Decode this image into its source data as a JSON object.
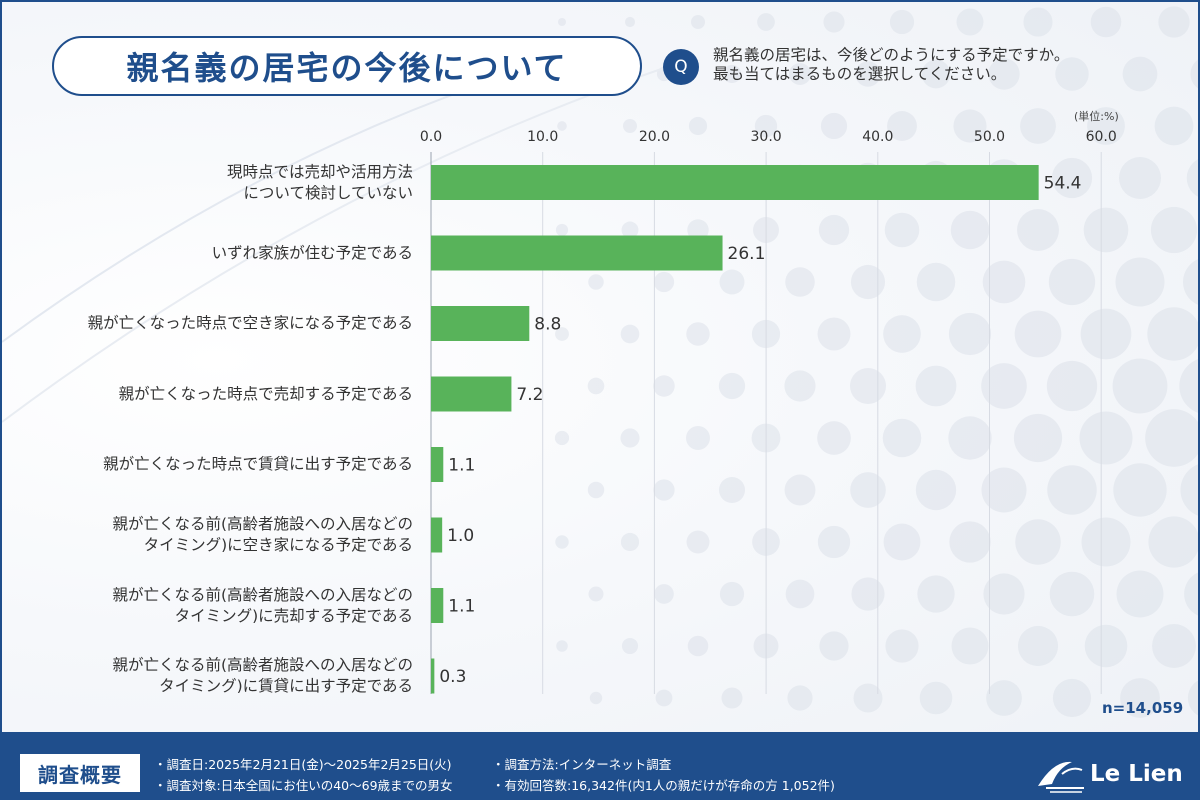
{
  "title": "親名義の居宅の今後について",
  "question": {
    "badge": "Q",
    "line1": "親名義の居宅は、今後どのようにする予定ですか。",
    "line2": "最も当てはまるものを選択してください。"
  },
  "unit_label": "(単位:%)",
  "sample_size": "n=14,059",
  "colors": {
    "bar": "#58b35a",
    "accent": "#1f4e8c",
    "grid": "#d7dbe3"
  },
  "chart_data": {
    "type": "bar",
    "orientation": "horizontal",
    "xlim": [
      0,
      60
    ],
    "ticks": [
      "0.0",
      "10.0",
      "20.0",
      "30.0",
      "40.0",
      "50.0",
      "60.0"
    ],
    "grid": true,
    "categories": [
      [
        "現時点では売却や活用方法",
        "について検討していない"
      ],
      [
        "いずれ家族が住む予定である"
      ],
      [
        "親が亡くなった時点で空き家になる予定である"
      ],
      [
        "親が亡くなった時点で売却する予定である"
      ],
      [
        "親が亡くなった時点で賃貸に出す予定である"
      ],
      [
        "親が亡くなる前(高齢者施設への入居などの",
        "タイミング)に空き家になる予定である"
      ],
      [
        "親が亡くなる前(高齢者施設への入居などの",
        "タイミング)に売却する予定である"
      ],
      [
        "親が亡くなる前(高齢者施設への入居などの",
        "タイミング)に賃貸に出す予定である"
      ]
    ],
    "values": [
      54.4,
      26.1,
      8.8,
      7.2,
      1.1,
      1.0,
      1.1,
      0.3
    ],
    "value_labels": [
      "54.4",
      "26.1",
      "8.8",
      "7.2",
      "1.1",
      "1.0",
      "1.1",
      "0.3"
    ]
  },
  "footer": {
    "tag": "調査概要",
    "date": "・調査日:2025年2月21日(金)～2025年2月25日(火)",
    "target": "・調査対象:日本全国にお住いの40～69歳までの男女",
    "method": "・調査方法:インターネット調査",
    "responses": "・有効回答数:16,342件(内1人の親だけが存命の方 1,052件)",
    "logo_text": "Le Lien"
  }
}
